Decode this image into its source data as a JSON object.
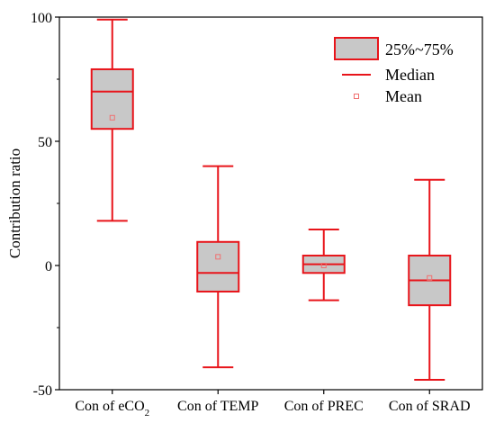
{
  "chart_data": {
    "type": "box",
    "ylabel": "Contribution ratio",
    "ylim": [
      -50,
      100
    ],
    "y_ticks": [
      -50,
      0,
      50,
      100
    ],
    "y_tick_labels": [
      "-50",
      "0",
      "50",
      "100"
    ],
    "categories": [
      "Con of eCO",
      "Con of TEMP",
      "Con of PREC",
      "Con of SRAD"
    ],
    "category_subscripts": [
      "2",
      "",
      "",
      ""
    ],
    "boxes": [
      {
        "min": 18,
        "q1": 55,
        "median": 70,
        "q3": 79,
        "max": 99,
        "mean": 59.5
      },
      {
        "min": -41,
        "q1": -10.5,
        "median": -3,
        "q3": 9.5,
        "max": 40,
        "mean": 3.5
      },
      {
        "min": -14,
        "q1": -3,
        "median": 0.5,
        "q3": 4,
        "max": 14.5,
        "mean": 0
      },
      {
        "min": -46,
        "q1": -16,
        "median": -6,
        "q3": 4,
        "max": 34.5,
        "mean": -5
      }
    ],
    "legend": {
      "position": "top-right",
      "box_label": "25%~75%",
      "median_label": "Median",
      "mean_label": "Mean"
    },
    "colors": {
      "box_edge": "#e8141a",
      "box_fill": "#c8c8c8",
      "mean_marker": "#f07070",
      "axis": "#000000"
    },
    "grid": false
  }
}
